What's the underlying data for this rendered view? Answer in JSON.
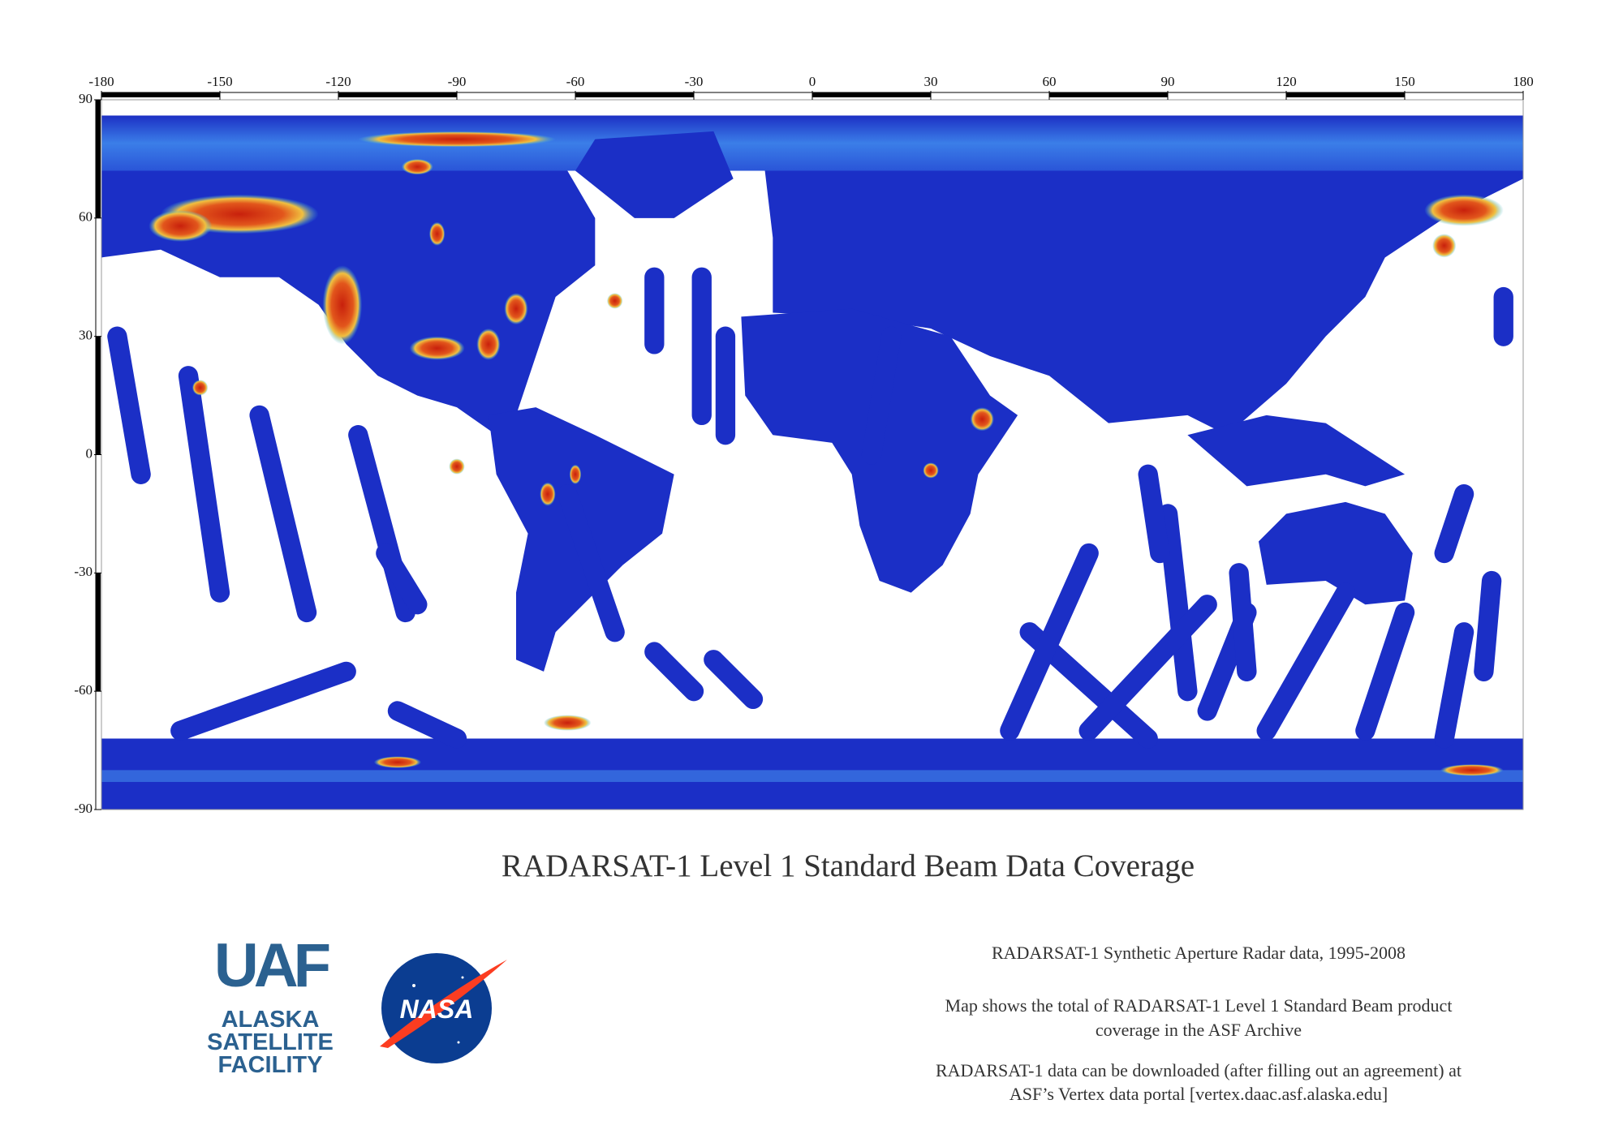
{
  "map": {
    "lon_ticks": [
      -180,
      -150,
      -120,
      -90,
      -60,
      -30,
      0,
      30,
      60,
      90,
      120,
      150,
      180
    ],
    "lat_ticks": [
      90,
      60,
      30,
      0,
      -30,
      -60,
      -90
    ]
  },
  "title": "RADARSAT-1 Level 1 Standard Beam Data Coverage",
  "logos": {
    "uaf": {
      "mark": "UAF",
      "lines": [
        "ALASKA",
        "SATELLITE",
        "FACILITY"
      ]
    },
    "nasa": "NASA"
  },
  "notes": [
    "RADARSAT-1 Synthetic Aperture Radar data, 1995-2008",
    "Map shows the total of RADARSAT-1 Level 1 Standard Beam product",
    "coverage in the ASF Archive",
    "RADARSAT-1 data can be downloaded (after filling out an agreement) at",
    "ASF’s Vertex data portal [vertex.daac.asf.alaska.edu]"
  ]
}
